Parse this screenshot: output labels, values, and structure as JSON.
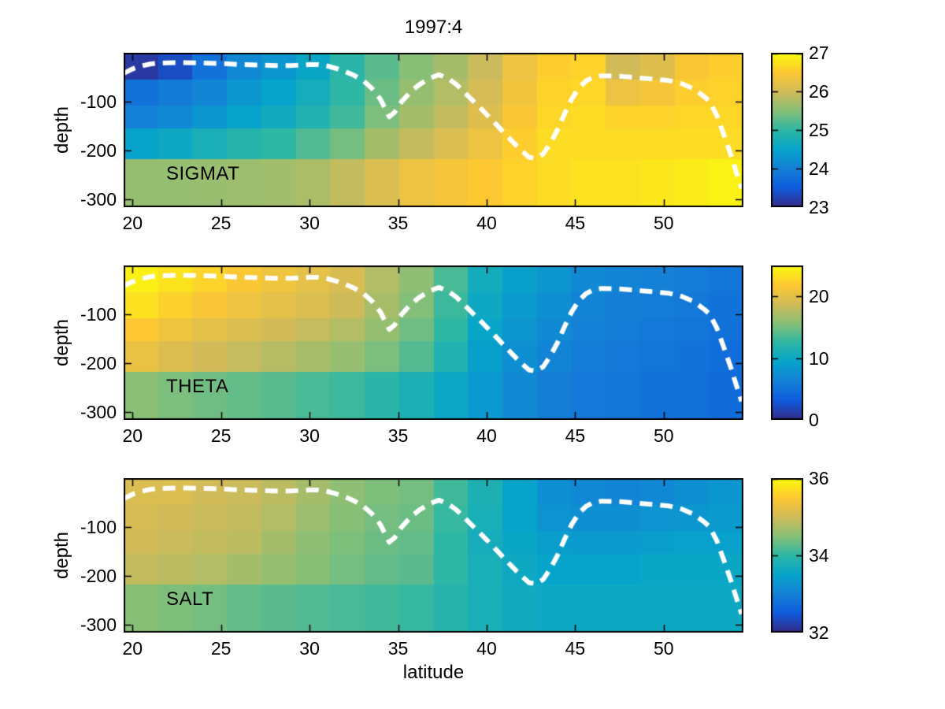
{
  "title": "1997:4",
  "xlabel": "latitude",
  "ylabel": "depth",
  "colormap_parula": [
    "#352a87",
    "#0f5cdd",
    "#1481d6",
    "#06a4ca",
    "#2eb7a4",
    "#87bf77",
    "#d1bb59",
    "#fec832",
    "#f9fb0e"
  ],
  "overlay_line": {
    "name": "mixed-layer-depth-dashed-line",
    "color": "#ffffff",
    "lat": [
      19.5,
      20,
      20.5,
      21,
      21.5,
      22.5,
      24,
      25,
      26,
      27,
      28,
      29,
      30,
      30.5,
      31,
      31.5,
      32,
      32.5,
      33,
      33.5,
      34,
      34.5,
      34.8,
      35.2,
      35.7,
      36.2,
      36.8,
      37.3,
      37.8,
      38.3,
      39,
      39.7,
      40.5,
      41.2,
      41.9,
      42.4,
      42.8,
      43.2,
      43.6,
      44,
      44.4,
      44.8,
      45.2,
      45.6,
      46,
      46.5,
      47.5,
      48.5,
      49.5,
      50.3,
      51,
      51.7,
      52.3,
      52.6,
      53,
      53.4,
      53.8,
      54.1,
      54.4
    ],
    "depth": [
      -42,
      -33,
      -27,
      -23,
      -21,
      -20,
      -21,
      -22,
      -24,
      -25,
      -26,
      -26,
      -24,
      -24,
      -27,
      -32,
      -38,
      -46,
      -56,
      -72,
      -95,
      -131,
      -122,
      -100,
      -80,
      -65,
      -52,
      -45,
      -52,
      -65,
      -90,
      -115,
      -145,
      -172,
      -198,
      -214,
      -216,
      -207,
      -185,
      -158,
      -125,
      -95,
      -72,
      -58,
      -50,
      -47,
      -48,
      -51,
      -54,
      -57,
      -63,
      -74,
      -90,
      -100,
      -128,
      -168,
      -210,
      -245,
      -278
    ]
  },
  "axes": {
    "xlim": [
      19.5,
      54.5
    ],
    "ylim": [
      0,
      -316
    ],
    "xticks": [
      20,
      25,
      30,
      35,
      40,
      45,
      50
    ],
    "yticks": [
      -100,
      -200,
      -300
    ],
    "depth_edges": [
      0,
      -55,
      -108,
      -155,
      -217,
      -316
    ]
  },
  "chart_data": [
    {
      "type": "heatmap",
      "label": "SIGMAT",
      "clim": [
        23,
        27
      ],
      "cbar_ticks": [
        23,
        24,
        25,
        26,
        27
      ],
      "values": [
        [
          23.15,
          23.35,
          23.8,
          24.1,
          24.3,
          24.55,
          24.95,
          25.25,
          25.5,
          25.7,
          25.95,
          26.3,
          26.55,
          26.6,
          26.0,
          26.15,
          26.45,
          26.55
        ],
        [
          23.8,
          23.9,
          24.05,
          24.3,
          24.5,
          24.7,
          25.0,
          25.35,
          25.6,
          25.8,
          26.05,
          26.35,
          26.6,
          26.65,
          26.3,
          26.4,
          26.55,
          26.6
        ],
        [
          24.0,
          24.1,
          24.3,
          24.5,
          24.65,
          24.85,
          25.1,
          25.45,
          25.7,
          25.9,
          26.15,
          26.45,
          26.65,
          26.7,
          26.6,
          26.6,
          26.65,
          26.65
        ],
        [
          24.5,
          24.6,
          24.75,
          24.9,
          25.0,
          25.2,
          25.4,
          25.7,
          25.9,
          26.1,
          26.3,
          26.55,
          26.7,
          26.7,
          26.7,
          26.7,
          26.7,
          26.7
        ],
        [
          25.6,
          25.6,
          25.62,
          25.65,
          25.68,
          25.75,
          25.9,
          26.1,
          26.3,
          26.4,
          26.5,
          26.6,
          26.7,
          26.75,
          26.75,
          26.8,
          26.85,
          26.9
        ]
      ]
    },
    {
      "type": "heatmap",
      "label": "THETA",
      "clim": [
        0,
        25
      ],
      "cbar_ticks": [
        0,
        10,
        20
      ],
      "values": [
        [
          24.3,
          23.6,
          22.6,
          21.6,
          20.8,
          20.1,
          19.3,
          17.5,
          16.0,
          13.5,
          10.5,
          9.0,
          8.0,
          7.0,
          6.5,
          6.2,
          5.8,
          5.2
        ],
        [
          23.4,
          22.4,
          21.5,
          20.7,
          20.0,
          19.4,
          18.6,
          17.0,
          15.5,
          13.0,
          10.0,
          8.5,
          7.5,
          6.5,
          6.0,
          5.8,
          5.5,
          5.0
        ],
        [
          21.8,
          20.8,
          20.0,
          19.4,
          18.8,
          18.2,
          17.5,
          16.2,
          14.8,
          12.5,
          9.5,
          8.0,
          7.0,
          6.2,
          5.8,
          5.5,
          5.2,
          4.8
        ],
        [
          20.4,
          19.5,
          18.8,
          18.2,
          17.6,
          17.0,
          16.3,
          15.2,
          13.8,
          11.5,
          9.0,
          7.5,
          6.5,
          5.8,
          5.5,
          5.2,
          5.0,
          4.6
        ],
        [
          15.8,
          15.2,
          14.8,
          14.4,
          14.0,
          13.5,
          13.0,
          12.2,
          11.2,
          9.8,
          8.2,
          7.0,
          6.0,
          5.5,
          5.2,
          5.0,
          4.8,
          4.5
        ]
      ]
    },
    {
      "type": "heatmap",
      "label": "SALT",
      "clim": [
        32,
        36
      ],
      "cbar_ticks": [
        32,
        34,
        36
      ],
      "values": [
        [
          35.1,
          35.1,
          35.0,
          34.95,
          34.85,
          34.7,
          34.55,
          34.45,
          34.4,
          34.1,
          33.8,
          33.5,
          33.2,
          33.1,
          33.05,
          33.1,
          33.2,
          33.3
        ],
        [
          35.05,
          35.0,
          34.95,
          34.9,
          34.8,
          34.65,
          34.5,
          34.4,
          34.35,
          34.05,
          33.75,
          33.5,
          33.25,
          33.2,
          33.2,
          33.25,
          33.3,
          33.35
        ],
        [
          35.0,
          34.95,
          34.9,
          34.85,
          34.7,
          34.55,
          34.45,
          34.35,
          34.3,
          34.0,
          33.7,
          33.55,
          33.4,
          33.35,
          33.35,
          33.4,
          33.45,
          33.45
        ],
        [
          34.9,
          34.85,
          34.8,
          34.7,
          34.6,
          34.5,
          34.4,
          34.3,
          34.25,
          34.0,
          33.75,
          33.6,
          33.5,
          33.5,
          33.5,
          33.55,
          33.55,
          33.55
        ],
        [
          34.5,
          34.45,
          34.4,
          34.3,
          34.25,
          34.2,
          34.15,
          34.1,
          34.05,
          33.9,
          33.75,
          33.65,
          33.6,
          33.6,
          33.6,
          33.6,
          33.6,
          33.6
        ]
      ]
    }
  ]
}
